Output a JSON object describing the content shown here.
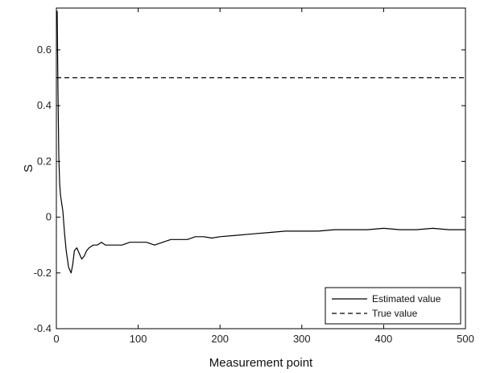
{
  "chart_data": {
    "type": "line",
    "title": "",
    "xlabel": "Measurement point",
    "ylabel": "S",
    "xlim": [
      0,
      500
    ],
    "ylim": [
      -0.4,
      0.75
    ],
    "xticks": [
      0,
      100,
      200,
      300,
      400,
      500
    ],
    "xtick_labels": [
      "0",
      "100",
      "200",
      "300",
      "400",
      "500"
    ],
    "yticks": [
      -0.4,
      -0.2,
      0,
      0.2,
      0.4,
      0.6
    ],
    "ytick_labels": [
      "-0.4",
      "-0.2",
      "0",
      "0.2",
      "0.4",
      "0.6"
    ],
    "grid": false,
    "legend_position": "bottom-right",
    "series": [
      {
        "name": "Estimated value",
        "style": "solid",
        "color": "#000000",
        "x": [
          1,
          2,
          3,
          4,
          5,
          6,
          8,
          10,
          12,
          15,
          18,
          20,
          22,
          25,
          28,
          31,
          34,
          37,
          40,
          45,
          50,
          55,
          60,
          70,
          80,
          90,
          100,
          110,
          120,
          130,
          140,
          150,
          160,
          170,
          180,
          190,
          200,
          220,
          240,
          260,
          280,
          300,
          320,
          340,
          360,
          380,
          400,
          420,
          440,
          460,
          480,
          500
        ],
        "y": [
          0.74,
          0.45,
          0.22,
          0.12,
          0.08,
          0.06,
          0.02,
          -0.06,
          -0.12,
          -0.18,
          -0.2,
          -0.17,
          -0.12,
          -0.11,
          -0.13,
          -0.15,
          -0.14,
          -0.12,
          -0.11,
          -0.1,
          -0.1,
          -0.09,
          -0.1,
          -0.1,
          -0.1,
          -0.09,
          -0.09,
          -0.09,
          -0.1,
          -0.09,
          -0.08,
          -0.08,
          -0.08,
          -0.07,
          -0.07,
          -0.075,
          -0.07,
          -0.065,
          -0.06,
          -0.055,
          -0.05,
          -0.05,
          -0.05,
          -0.045,
          -0.045,
          -0.045,
          -0.04,
          -0.045,
          -0.045,
          -0.04,
          -0.045,
          -0.045
        ]
      },
      {
        "name": "True value",
        "style": "dashed",
        "color": "#000000",
        "x": [
          0,
          500
        ],
        "y": [
          0.5,
          0.5
        ]
      }
    ]
  }
}
